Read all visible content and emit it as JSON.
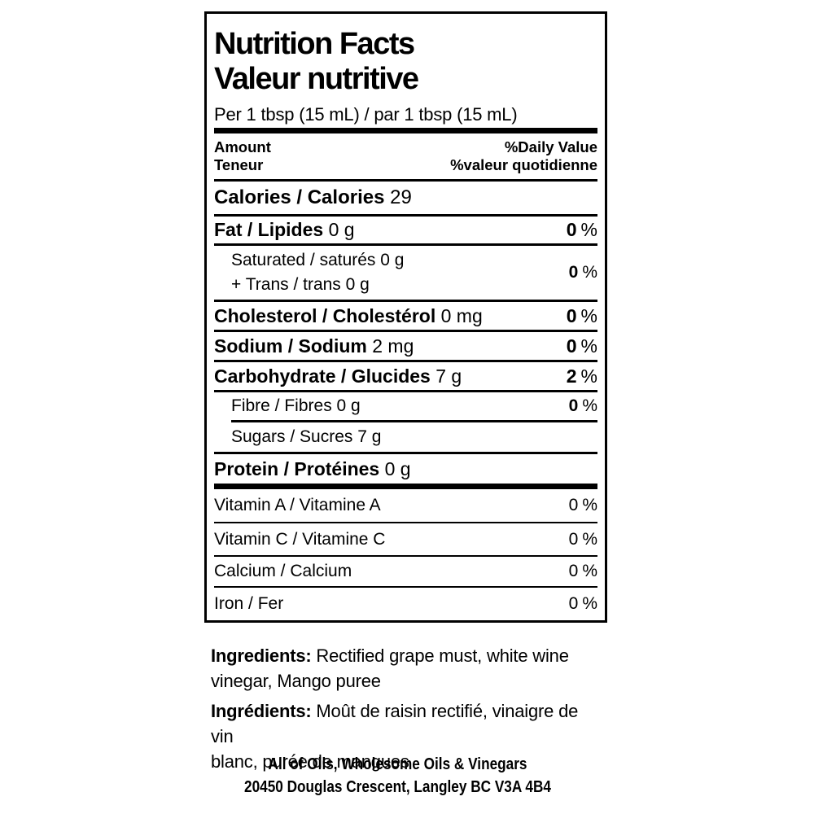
{
  "label": {
    "title_en": "Nutrition Facts",
    "title_fr": "Valeur nutritive",
    "serving": "Per 1 tbsp (15 mL) / par 1 tbsp (15 mL)",
    "percent_sign": "%",
    "header": {
      "amount_en": "Amount",
      "amount_fr": "Teneur",
      "daily_value_en": "%Daily Value",
      "daily_value_fr": "%valeur quotidienne"
    },
    "calories": {
      "name": "Calories / Calories",
      "value": "29"
    },
    "rows": {
      "fat": {
        "name": "Fat / Lipides",
        "amount": "0 g",
        "dv": "0"
      },
      "sat_trans": {
        "line1": "Saturated / saturés 0 g",
        "line2": "+ Trans / trans 0 g",
        "dv": "0"
      },
      "cholesterol": {
        "name": "Cholesterol / Cholestérol",
        "amount": "0 mg",
        "dv": "0"
      },
      "sodium": {
        "name": "Sodium / Sodium",
        "amount": "2 mg",
        "dv": "0"
      },
      "carbohydrate": {
        "name": "Carbohydrate / Glucides",
        "amount": "7 g",
        "dv": "2"
      },
      "fibre": {
        "name": "Fibre / Fibres 0 g",
        "dv": "0"
      },
      "sugars": {
        "name": "Sugars / Sucres 7 g"
      },
      "protein": {
        "name": "Protein / Protéines",
        "amount": "0 g"
      }
    },
    "micronutrients": [
      {
        "name": "Vitamin A / Vitamine A",
        "dv": "0"
      },
      {
        "name": "Vitamin C / Vitamine C",
        "dv": "0"
      },
      {
        "name": "Calcium / Calcium",
        "dv": "0"
      },
      {
        "name": "Iron / Fer",
        "dv": "0"
      }
    ]
  },
  "ingredients": {
    "en": {
      "label": "Ingredients:",
      "line1": "Rectified grape must, white wine",
      "line2": "vinegar, Mango puree"
    },
    "fr": {
      "label": "Ingrédients:",
      "line1": "Moût de raisin rectifié, vinaigre de vin",
      "line2": "blanc, purée de mangues"
    }
  },
  "footer": {
    "business": "All of Oils, Wholesome Oils & Vinegars",
    "address": "20450 Douglas Crescent, Langley BC V3A 4B4"
  },
  "colors": {
    "text": "#000000",
    "background": "#ffffff",
    "rule": "#000000"
  }
}
